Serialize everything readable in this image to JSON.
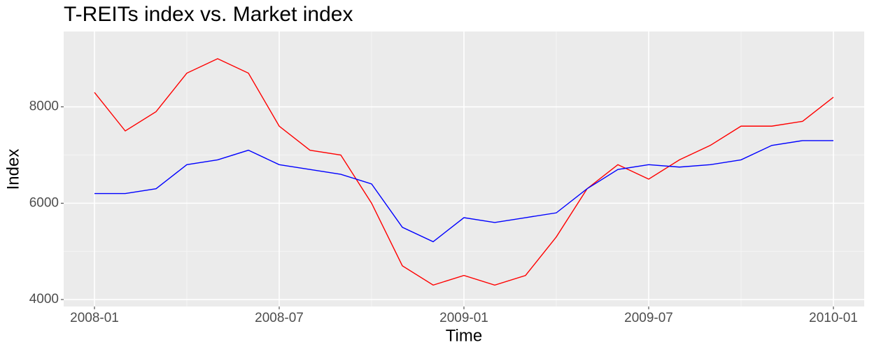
{
  "chart_data": {
    "type": "line",
    "title": "T-REITs index vs. Market index",
    "x_label": "Time",
    "y_label": "Index",
    "x": [
      "2008-01",
      "2008-02",
      "2008-03",
      "2008-04",
      "2008-05",
      "2008-06",
      "2008-07",
      "2008-08",
      "2008-09",
      "2008-10",
      "2008-11",
      "2008-12",
      "2009-01",
      "2009-02",
      "2009-03",
      "2009-04",
      "2009-05",
      "2009-06",
      "2009-07",
      "2009-08",
      "2009-09",
      "2009-10",
      "2009-11",
      "2009-12",
      "2010-01"
    ],
    "series": [
      {
        "name": "T-REITs index",
        "color": "#ff0000",
        "values": [
          8300,
          7500,
          7900,
          8700,
          9000,
          8700,
          7600,
          7100,
          7000,
          6000,
          4700,
          4300,
          4500,
          4300,
          4500,
          5300,
          6300,
          6800,
          6500,
          6900,
          7200,
          7600,
          7600,
          7700,
          8200
        ]
      },
      {
        "name": "Market index",
        "color": "#0000ff",
        "values": [
          6200,
          6200,
          6300,
          6800,
          6900,
          7100,
          6800,
          6700,
          6600,
          6400,
          5500,
          5200,
          5700,
          5600,
          5700,
          5800,
          6300,
          6700,
          6800,
          6750,
          6800,
          6900,
          7200,
          7300,
          7300
        ]
      }
    ],
    "xlim": [
      "2007-12",
      "2010-02"
    ],
    "xticks": [
      "2008-01",
      "2008-07",
      "2009-01",
      "2009-07",
      "2010-01"
    ],
    "ylim": [
      3855,
      9565
    ],
    "yticks": [
      4000,
      6000,
      8000
    ],
    "grid": true
  }
}
